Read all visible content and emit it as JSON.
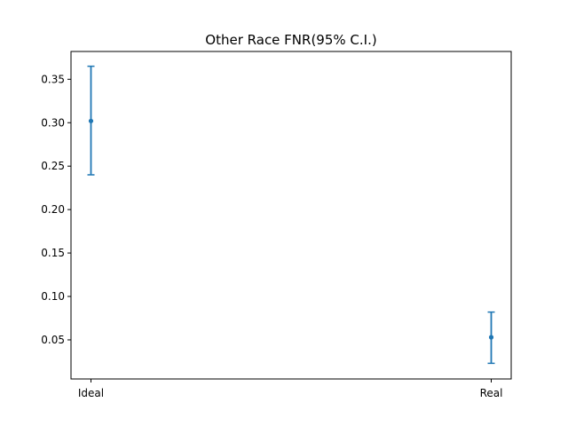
{
  "chart_data": {
    "type": "errorbar",
    "title": "Other Race FNR(95% C.I.)",
    "xlabel": "",
    "ylabel": "",
    "categories": [
      "Ideal",
      "Real"
    ],
    "series": [
      {
        "values": [
          0.302,
          0.053
        ],
        "lower": [
          0.24,
          0.023
        ],
        "upper": [
          0.365,
          0.082
        ]
      }
    ],
    "ylim": [
      0.005,
      0.382
    ],
    "yticks": [
      0.05,
      0.1,
      0.15,
      0.2,
      0.25,
      0.3,
      0.35
    ],
    "ytick_labels": [
      "0.05",
      "0.10",
      "0.15",
      "0.20",
      "0.25",
      "0.30",
      "0.35"
    ],
    "grid": false,
    "color": "#1f77b4"
  }
}
